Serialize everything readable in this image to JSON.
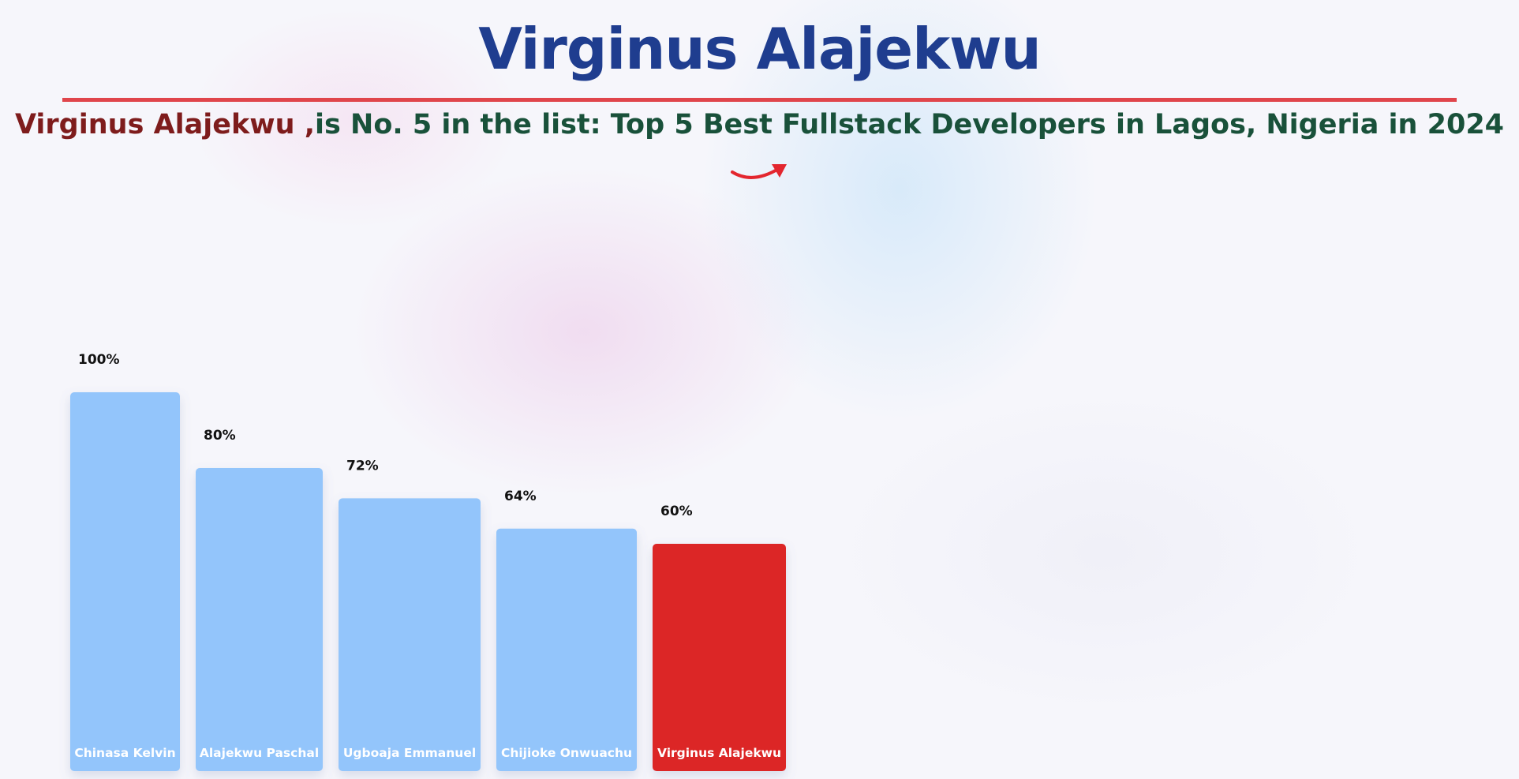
{
  "header": {
    "title": "Virginus Alajekwu",
    "subtitle_name": "Virginus Alajekwu ,",
    "subtitle_rest": "is No. 5 in the list: Top 5 Best Fullstack Developers in Lagos, Nigeria in 2024"
  },
  "colors": {
    "default_bar": "#93c5fb",
    "highlight_bar": "#dc2626",
    "title": "#1f3d8f",
    "divider": "#e0454b",
    "subtitle_name": "#7e1c1c",
    "subtitle_rest": "#19513a",
    "arrow": "#e3262e"
  },
  "icons": {
    "arrow": "curved-arrow-icon"
  },
  "chart_data": {
    "type": "bar",
    "title": "",
    "xlabel": "",
    "ylabel": "",
    "ylim": [
      0,
      100
    ],
    "value_suffix": "%",
    "grid": false,
    "categories": [
      "Chinasa Kelvin",
      "Alajekwu Paschal",
      "Ugboaja Emmanuel",
      "Chijioke Onwuachu",
      "Virginus Alajekwu"
    ],
    "values": [
      100,
      80,
      72,
      64,
      60
    ],
    "value_labels": [
      "100%",
      "80%",
      "72%",
      "64%",
      "60%"
    ],
    "highlight": "Virginus Alajekwu"
  }
}
